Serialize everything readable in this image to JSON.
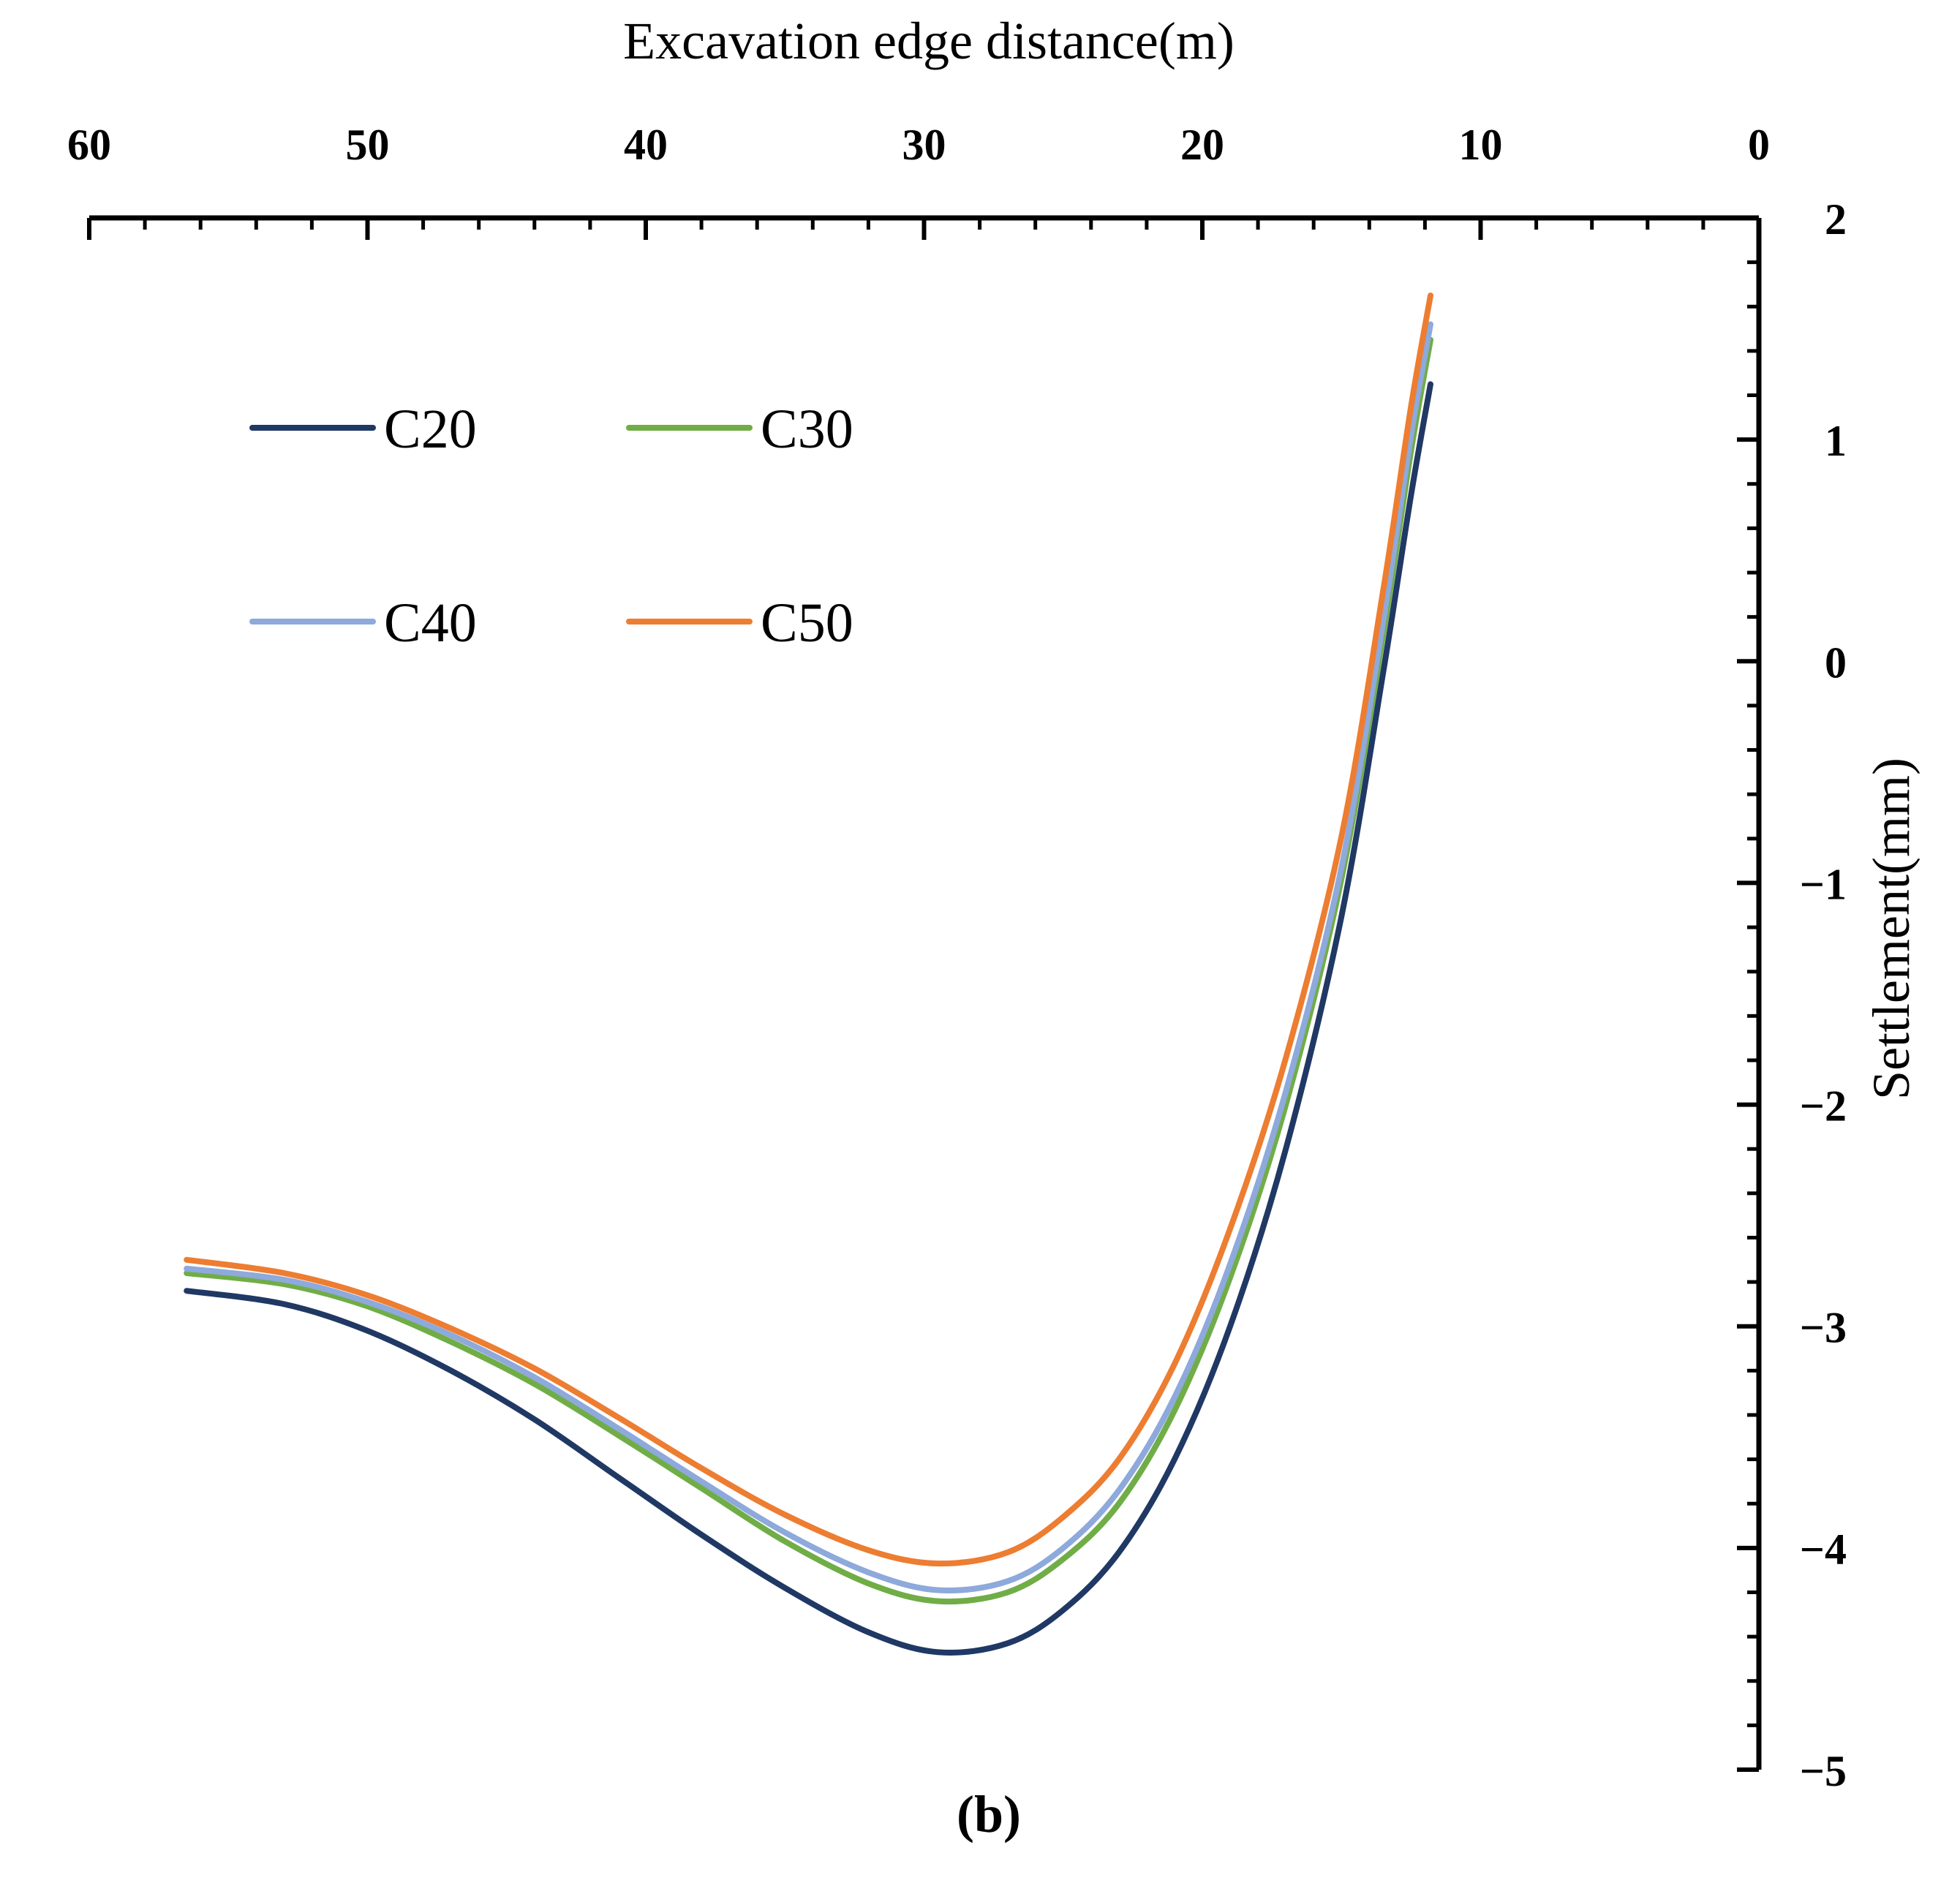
{
  "chart_data": {
    "type": "line",
    "panel_label": "(b)",
    "xlabel": "Excavation edge distance(m)",
    "ylabel": "Settlement(mm)",
    "xlim": [
      60,
      0
    ],
    "ylim": [
      -5,
      2
    ],
    "x_axis_position": "top",
    "y_axis_position": "right",
    "x_ticks": [
      {
        "value": 60,
        "label": "60"
      },
      {
        "value": 50,
        "label": "50"
      },
      {
        "value": 40,
        "label": "40"
      },
      {
        "value": 30,
        "label": "30"
      },
      {
        "value": 20,
        "label": "20"
      },
      {
        "value": 10,
        "label": "10"
      },
      {
        "value": 0,
        "label": "0"
      }
    ],
    "y_ticks": [
      {
        "value": 2,
        "label": "2"
      },
      {
        "value": 1,
        "label": "1"
      },
      {
        "value": 0,
        "label": "0"
      },
      {
        "value": -1,
        "label": "−1"
      },
      {
        "value": -2,
        "label": "−2"
      },
      {
        "value": -3,
        "label": "−3"
      },
      {
        "value": -4,
        "label": "−4"
      },
      {
        "value": -5,
        "label": "−5"
      }
    ],
    "legend_placement": "top-left",
    "series": [
      {
        "name": "C20",
        "color": "#203864",
        "points": [
          [
            56.5,
            -2.84
          ],
          [
            53,
            -2.9
          ],
          [
            50,
            -3.02
          ],
          [
            47,
            -3.2
          ],
          [
            44,
            -3.42
          ],
          [
            41,
            -3.68
          ],
          [
            38,
            -3.94
          ],
          [
            35,
            -4.18
          ],
          [
            32,
            -4.38
          ],
          [
            29.5,
            -4.47
          ],
          [
            27,
            -4.43
          ],
          [
            25,
            -4.28
          ],
          [
            23,
            -4.02
          ],
          [
            21,
            -3.6
          ],
          [
            19,
            -3.0
          ],
          [
            17,
            -2.2
          ],
          [
            15,
            -1.15
          ],
          [
            13.5,
            -0.05
          ],
          [
            12.5,
            0.75
          ],
          [
            11.8,
            1.25
          ]
        ]
      },
      {
        "name": "C30",
        "color": "#70AD47",
        "points": [
          [
            56.5,
            -2.76
          ],
          [
            53,
            -2.81
          ],
          [
            50,
            -2.91
          ],
          [
            47,
            -3.07
          ],
          [
            44,
            -3.26
          ],
          [
            41,
            -3.49
          ],
          [
            38,
            -3.73
          ],
          [
            35,
            -3.97
          ],
          [
            32,
            -4.16
          ],
          [
            29.5,
            -4.24
          ],
          [
            27,
            -4.2
          ],
          [
            25,
            -4.05
          ],
          [
            23,
            -3.8
          ],
          [
            21,
            -3.38
          ],
          [
            19,
            -2.78
          ],
          [
            17,
            -2.0
          ],
          [
            15,
            -0.98
          ],
          [
            13.5,
            0.12
          ],
          [
            12.5,
            0.95
          ],
          [
            11.8,
            1.45
          ]
        ]
      },
      {
        "name": "C40",
        "color": "#8EA9DB",
        "points": [
          [
            56.5,
            -2.74
          ],
          [
            53,
            -2.79
          ],
          [
            50,
            -2.89
          ],
          [
            47,
            -3.04
          ],
          [
            44,
            -3.23
          ],
          [
            41,
            -3.46
          ],
          [
            38,
            -3.7
          ],
          [
            35,
            -3.93
          ],
          [
            32,
            -4.11
          ],
          [
            29.5,
            -4.19
          ],
          [
            27,
            -4.15
          ],
          [
            25,
            -4.0
          ],
          [
            23,
            -3.74
          ],
          [
            21,
            -3.32
          ],
          [
            19,
            -2.72
          ],
          [
            17,
            -1.94
          ],
          [
            15,
            -0.93
          ],
          [
            13.5,
            0.18
          ],
          [
            12.5,
            1.02
          ],
          [
            11.8,
            1.52
          ]
        ]
      },
      {
        "name": "C50",
        "color": "#ED7D31",
        "points": [
          [
            56.5,
            -2.7
          ],
          [
            53,
            -2.76
          ],
          [
            50,
            -2.86
          ],
          [
            47,
            -3.01
          ],
          [
            44,
            -3.19
          ],
          [
            41,
            -3.41
          ],
          [
            38,
            -3.64
          ],
          [
            35,
            -3.85
          ],
          [
            32,
            -4.01
          ],
          [
            29.5,
            -4.07
          ],
          [
            27,
            -4.02
          ],
          [
            25,
            -3.86
          ],
          [
            23,
            -3.6
          ],
          [
            21,
            -3.17
          ],
          [
            19,
            -2.56
          ],
          [
            17,
            -1.79
          ],
          [
            15,
            -0.79
          ],
          [
            13.5,
            0.32
          ],
          [
            12.5,
            1.15
          ],
          [
            11.8,
            1.65
          ]
        ]
      }
    ]
  }
}
